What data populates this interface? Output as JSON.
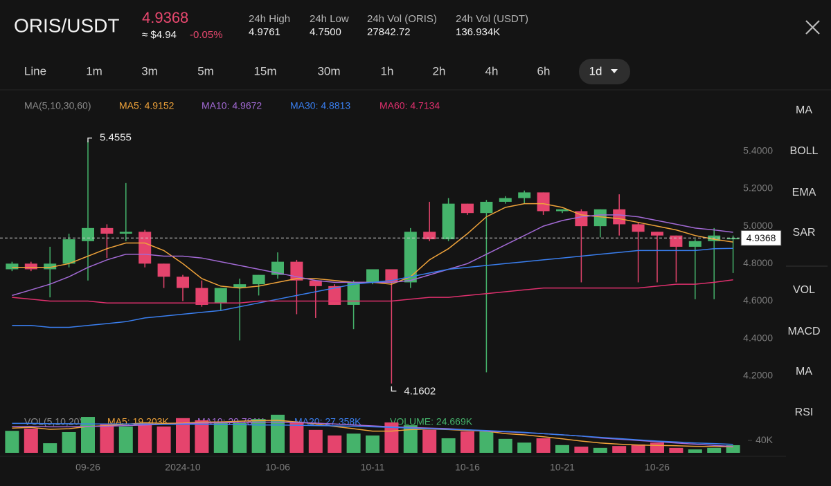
{
  "header": {
    "pair": "ORIS/USDT",
    "price": "4.9368",
    "usd_price": "≈ $4.94",
    "change": "-0.05%",
    "stats": [
      {
        "label": "24h High",
        "value": "4.9761"
      },
      {
        "label": "24h Low",
        "value": "4.7500"
      },
      {
        "label": "24h Vol (ORIS)",
        "value": "27842.72"
      },
      {
        "label": "24h Vol (USDT)",
        "value": "136.934K"
      }
    ]
  },
  "timeframes": [
    "Line",
    "1m",
    "3m",
    "5m",
    "15m",
    "30m",
    "1h",
    "2h",
    "4h",
    "6h"
  ],
  "selected_timeframe": "1d",
  "indicators": [
    "MA",
    "BOLL",
    "EMA",
    "SAR",
    "VOL",
    "MACD",
    "MA",
    "RSI"
  ],
  "chart_data": {
    "type": "candlestick",
    "categories": [
      null,
      null,
      null,
      null,
      "09-26",
      null,
      null,
      null,
      null,
      "2024-10",
      null,
      null,
      null,
      null,
      "10-06",
      null,
      null,
      null,
      null,
      "10-11",
      null,
      null,
      null,
      null,
      "10-16",
      null,
      null,
      null,
      null,
      "10-21",
      null,
      null,
      null,
      null,
      "10-26",
      null,
      null,
      null,
      null
    ],
    "open": [
      4.77,
      4.8,
      4.77,
      4.8,
      4.92,
      4.99,
      4.96,
      4.97,
      4.8,
      4.73,
      4.67,
      4.59,
      4.67,
      4.69,
      4.74,
      4.81,
      4.71,
      4.68,
      4.58,
      4.7,
      4.77,
      4.7,
      4.97,
      4.93,
      5.12,
      5.07,
      5.13,
      5.15,
      5.18,
      5.08,
      5.08,
      5.0,
      5.09,
      5.01,
      4.97,
      4.95,
      4.89,
      4.92,
      4.93
    ],
    "high": [
      4.81,
      4.81,
      4.89,
      4.96,
      5.4555,
      5.01,
      5.23,
      4.98,
      4.8,
      4.74,
      4.71,
      4.67,
      4.72,
      4.74,
      4.86,
      4.82,
      4.71,
      4.69,
      4.71,
      4.77,
      4.77,
      4.99,
      5.13,
      5.15,
      5.12,
      5.14,
      5.16,
      5.19,
      5.18,
      5.09,
      5.09,
      5.09,
      5.17,
      5.02,
      4.97,
      4.95,
      4.93,
      4.99,
      4.95
    ],
    "low": [
      4.76,
      4.76,
      4.62,
      4.78,
      4.71,
      4.83,
      4.92,
      4.78,
      4.67,
      4.6,
      4.57,
      4.55,
      4.39,
      4.63,
      4.72,
      4.53,
      4.51,
      4.58,
      4.45,
      4.69,
      4.1602,
      4.67,
      4.92,
      4.92,
      5.06,
      4.22,
      5.12,
      5.12,
      5.06,
      5.07,
      4.7,
      4.94,
      4.95,
      4.7,
      4.7,
      4.7,
      4.61,
      4.61,
      4.75
    ],
    "close": [
      4.8,
      4.77,
      4.8,
      4.93,
      4.99,
      4.96,
      4.97,
      4.8,
      4.73,
      4.67,
      4.58,
      4.67,
      4.69,
      4.74,
      4.81,
      4.71,
      4.68,
      4.58,
      4.7,
      4.77,
      4.7,
      4.97,
      4.93,
      5.12,
      5.07,
      5.13,
      5.15,
      5.18,
      5.08,
      5.09,
      5.0,
      5.09,
      5.01,
      4.97,
      4.95,
      4.89,
      4.92,
      4.95,
      4.9368
    ],
    "up_color": "#45b36b",
    "down_color": "#e5446d",
    "ylim": [
      4.03,
      5.65
    ],
    "yticks": [
      {
        "value": 5.4,
        "label": "5.4000"
      },
      {
        "value": 5.2,
        "label": "5.2000"
      },
      {
        "value": 5.0,
        "label": "5.0000"
      },
      {
        "value": 4.8,
        "label": "4.8000"
      },
      {
        "value": 4.6,
        "label": "4.6000"
      },
      {
        "value": 4.4,
        "label": "4.4000"
      },
      {
        "value": 4.2,
        "label": "4.2000"
      }
    ],
    "grid": false,
    "overlay_title": "MA(5,10,30,60)",
    "overlays": [
      {
        "name": "MA5",
        "legend": "MA5: 4.9152",
        "color": "#f0a33a",
        "values": [
          4.78,
          4.78,
          4.78,
          4.8,
          4.84,
          4.88,
          4.91,
          4.91,
          4.87,
          4.8,
          4.72,
          4.68,
          4.67,
          4.68,
          4.7,
          4.72,
          4.72,
          4.71,
          4.7,
          4.7,
          4.69,
          4.73,
          4.82,
          4.88,
          4.96,
          5.05,
          5.1,
          5.12,
          5.12,
          5.1,
          5.06,
          5.05,
          5.04,
          5.02,
          5.0,
          4.98,
          4.95,
          4.93,
          4.9152
        ]
      },
      {
        "name": "MA10",
        "legend": "MA10: 4.9672",
        "color": "#a36ad6",
        "values": [
          4.63,
          4.66,
          4.69,
          4.73,
          4.78,
          4.82,
          4.85,
          4.85,
          4.84,
          4.84,
          4.83,
          4.81,
          4.79,
          4.77,
          4.75,
          4.73,
          4.71,
          4.7,
          4.7,
          4.7,
          4.7,
          4.71,
          4.74,
          4.77,
          4.8,
          4.85,
          4.9,
          4.95,
          5.0,
          5.03,
          5.05,
          5.06,
          5.06,
          5.05,
          5.03,
          5.01,
          4.99,
          4.98,
          4.9672
        ]
      },
      {
        "name": "MA30",
        "legend": "MA30: 4.8813",
        "color": "#3a7ff0",
        "values": [
          4.47,
          4.47,
          4.46,
          4.46,
          4.47,
          4.48,
          4.49,
          4.51,
          4.52,
          4.53,
          4.54,
          4.55,
          4.57,
          4.59,
          4.61,
          4.63,
          4.65,
          4.67,
          4.69,
          4.7,
          4.71,
          4.73,
          4.75,
          4.77,
          4.78,
          4.79,
          4.8,
          4.81,
          4.82,
          4.83,
          4.84,
          4.85,
          4.86,
          4.87,
          4.87,
          4.87,
          4.87,
          4.88,
          4.8813
        ]
      },
      {
        "name": "MA60",
        "legend": "MA60: 4.7134",
        "color": "#e0306e",
        "values": [
          4.62,
          4.61,
          4.6,
          4.6,
          4.6,
          4.59,
          4.59,
          4.59,
          4.59,
          4.59,
          4.59,
          4.59,
          4.59,
          4.6,
          4.6,
          4.6,
          4.6,
          4.6,
          4.6,
          4.6,
          4.6,
          4.61,
          4.62,
          4.62,
          4.63,
          4.64,
          4.65,
          4.66,
          4.67,
          4.67,
          4.67,
          4.67,
          4.67,
          4.67,
          4.68,
          4.69,
          4.69,
          4.7,
          4.7134
        ]
      }
    ],
    "volume": {
      "title": "VOL(5,10,20)",
      "legend": "VOLUME: 24.669K",
      "values": [
        71000,
        78000,
        31000,
        67000,
        116000,
        94000,
        85000,
        96000,
        85000,
        112000,
        105000,
        100000,
        96000,
        109000,
        123000,
        100000,
        74000,
        56000,
        62000,
        56000,
        98000,
        89000,
        74000,
        47000,
        69000,
        69000,
        45000,
        33000,
        47000,
        25000,
        20000,
        16000,
        22000,
        27000,
        33000,
        16000,
        11000,
        16000,
        24669
      ],
      "ylim": [
        0,
        125000
      ],
      "yticks": [
        {
          "value": 40000,
          "label": "40K"
        }
      ],
      "overlays": [
        {
          "name": "MA5",
          "legend": "MA5: 19.203K",
          "color": "#f0a33a",
          "values": [
            80000,
            82000,
            76000,
            78000,
            85000,
            88000,
            92000,
            97000,
            95000,
            96000,
            99000,
            100000,
            102000,
            104000,
            105000,
            100000,
            93000,
            85000,
            78000,
            70000,
            70000,
            75000,
            77000,
            75000,
            72000,
            70000,
            62000,
            58000,
            52000,
            45000,
            38000,
            32000,
            28000,
            25000,
            24000,
            23000,
            21000,
            20000,
            19203
          ]
        },
        {
          "name": "MA10",
          "legend": "MA10: 20.781K",
          "color": "#a36ad6",
          "values": [
            85000,
            85000,
            84000,
            84000,
            85000,
            86000,
            88000,
            90000,
            92000,
            94000,
            96000,
            97000,
            98000,
            99000,
            99000,
            98000,
            96000,
            93000,
            90000,
            87000,
            84000,
            82000,
            80000,
            78000,
            74000,
            70000,
            68000,
            65000,
            62000,
            58000,
            54000,
            48000,
            44000,
            40000,
            36000,
            32000,
            28000,
            24000,
            20781
          ]
        },
        {
          "name": "MA20",
          "legend": "MA20: 27.358K",
          "color": "#3a7ff0",
          "values": [
            95000,
            95000,
            94000,
            94000,
            93000,
            93000,
            93000,
            93000,
            92000,
            92000,
            92000,
            91000,
            91000,
            90000,
            90000,
            89000,
            88000,
            87000,
            86000,
            84000,
            82000,
            80000,
            78000,
            76000,
            74000,
            72000,
            69000,
            66000,
            62000,
            58000,
            54000,
            50000,
            46000,
            42000,
            38000,
            35000,
            32000,
            30000,
            27358
          ]
        }
      ]
    }
  }
}
